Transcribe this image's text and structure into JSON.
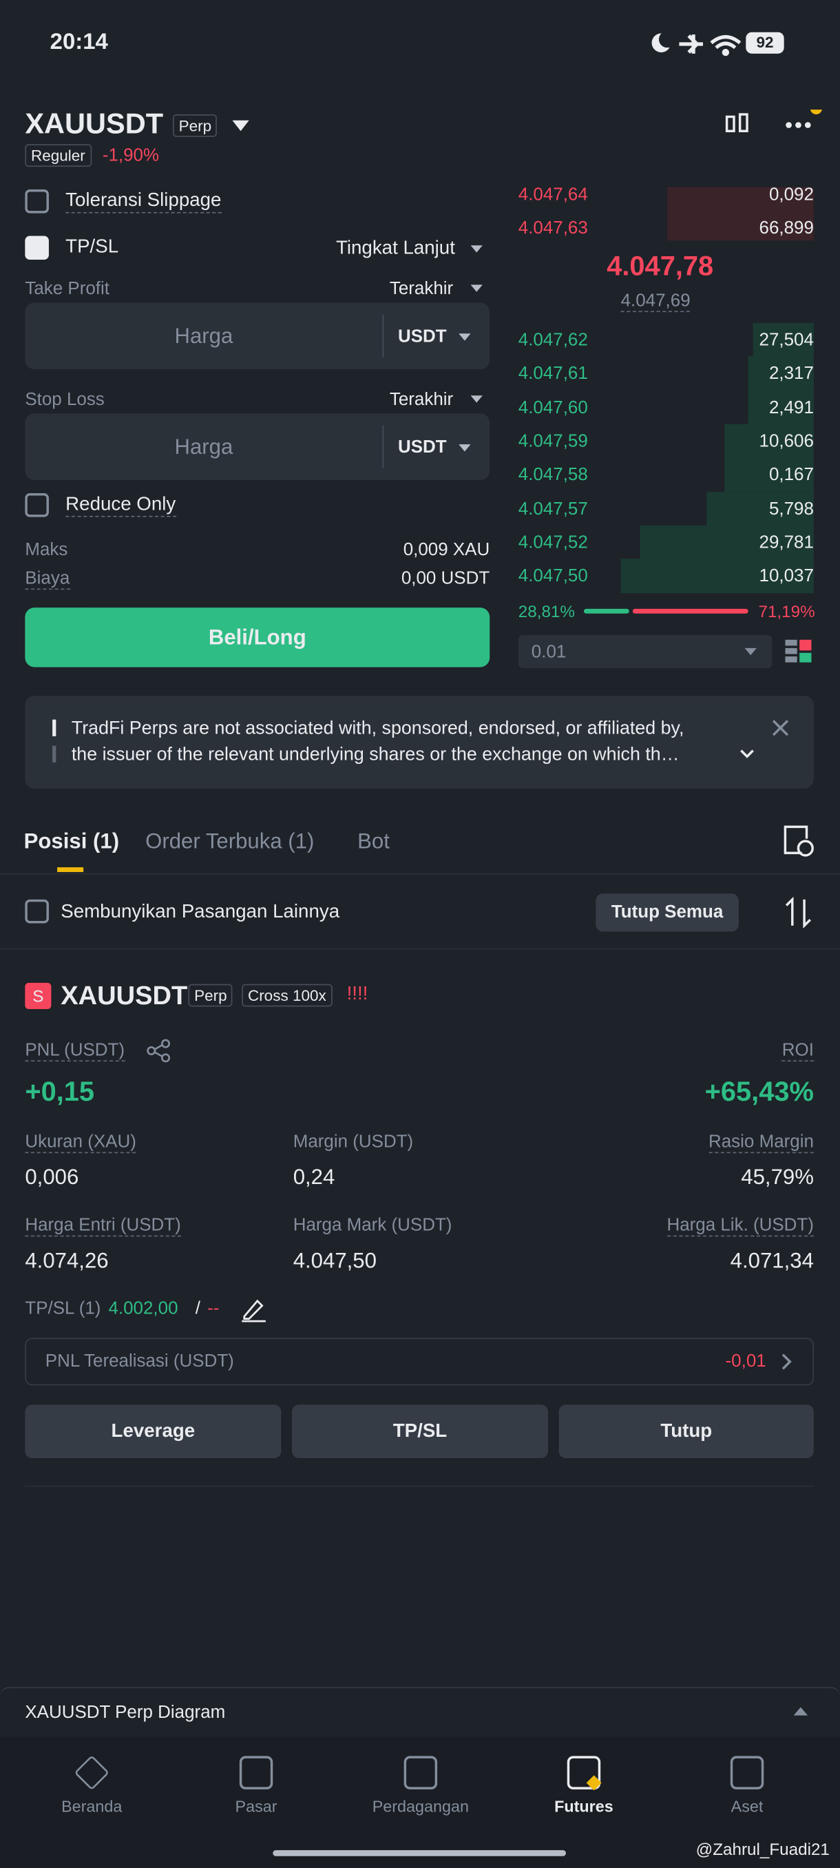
{
  "status": {
    "time": "20:14",
    "battery": "92"
  },
  "header": {
    "symbol": "XAUUSDT",
    "badge": "Perp",
    "mode": "Reguler",
    "change": "-1,90%"
  },
  "form": {
    "slippage": "Toleransi Slippage",
    "tpsl": "TP/SL",
    "advanced": "Tingkat Lanjut",
    "take_profit": {
      "label": "Take Profit",
      "trigger": "Terakhir",
      "placeholder": "Harga",
      "unit": "USDT"
    },
    "stop_loss": {
      "label": "Stop Loss",
      "trigger": "Terakhir",
      "placeholder": "Harga",
      "unit": "USDT"
    },
    "reduce_only": "Reduce Only",
    "max_label": "Maks",
    "max_value": "0,009 XAU",
    "fee_label": "Biaya",
    "fee_value": "0,00 USDT",
    "button": "Beli/Long"
  },
  "orderbook": {
    "asks": [
      [
        "4.047,64",
        "0,092"
      ],
      [
        "4.047,63",
        "66,899"
      ]
    ],
    "last": "4.047,78",
    "mark": "4.047,69",
    "bids": [
      [
        "4.047,62",
        "27,504"
      ],
      [
        "4.047,61",
        "2,317"
      ],
      [
        "4.047,60",
        "2,491"
      ],
      [
        "4.047,59",
        "10,606"
      ],
      [
        "4.047,58",
        "0,167"
      ],
      [
        "4.047,57",
        "5,798"
      ],
      [
        "4.047,52",
        "29,781"
      ],
      [
        "4.047,50",
        "10,037"
      ]
    ],
    "buy_ratio": "28,81%",
    "sell_ratio": "71,19%",
    "precision": "0.01"
  },
  "notice": {
    "lines": [
      "TradFi Perps are not associated with, sponsored, endorsed, or affiliated by,",
      "the issuer of the relevant underlying shares or the exchange on which th…"
    ]
  },
  "tabs": [
    "Posisi (1)",
    "Order Terbuka (1)",
    "Bot"
  ],
  "filter": {
    "hide": "Sembunyikan Pasangan Lainnya",
    "close_all": "Tutup Semua"
  },
  "position": {
    "side": "S",
    "symbol": "XAUUSDT",
    "badge": "Perp",
    "leverage": "Cross 100x",
    "alert": "!!!!",
    "pnl_label": "PNL (USDT)",
    "pnl": "+0,15",
    "roi_label": "ROI",
    "roi": "+65,43%",
    "fields": [
      [
        "Ukuran (XAU)",
        "0,006"
      ],
      [
        "Margin (USDT)",
        "0,24"
      ],
      [
        "Rasio Margin",
        "45,79%"
      ],
      [
        "Harga Entri (USDT)",
        "4.074,26"
      ],
      [
        "Harga Mark (USDT)",
        "4.047,50"
      ],
      [
        "Harga Lik. (USDT)",
        "4.071,34"
      ]
    ],
    "tpsl_label": "TP/SL (1)",
    "tp": "4.002,00",
    "sep": "/",
    "sl": "--",
    "realized_label": "PNL Terealisasi (USDT)",
    "realized": "-0,01",
    "buttons": [
      "Leverage",
      "TP/SL",
      "Tutup"
    ]
  },
  "chart_bar": "XAUUSDT Perp Diagram",
  "nav": [
    "Beranda",
    "Pasar",
    "Perdagangan",
    "Futures",
    "Aset"
  ],
  "watermark": "@Zahrul_Fuadi21"
}
